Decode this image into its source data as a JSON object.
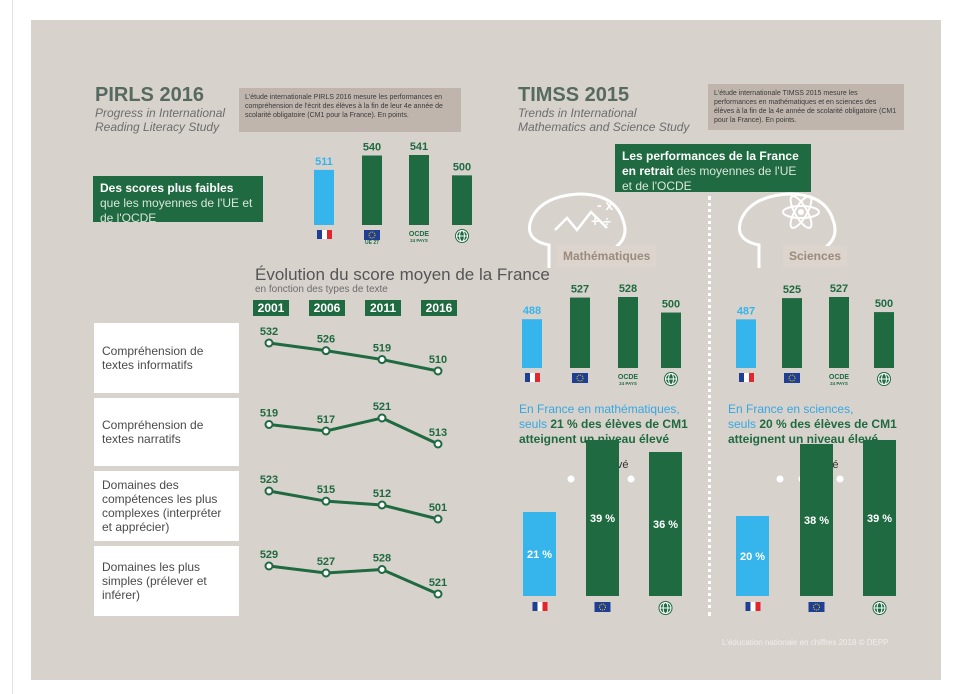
{
  "pirls": {
    "title": "PIRLS 2016",
    "subtitle1": "Progress in International",
    "subtitle2": "Reading Literacy Study",
    "note": "L'étude internationale PIRLS 2016 mesure les performances en compréhension de l'écrit des élèves à la fin de leur 4e année de scolarité obligatoire (CM1 pour la France). En points.",
    "callout_bold": "Des scores plus faibles",
    "callout_rest": "que les moyennes de l'UE et de l'OCDE",
    "evo_title": "Évolution du score moyen de la France",
    "evo_subtitle": "en fonction des types de texte"
  },
  "timss": {
    "title": "TIMSS 2015",
    "subtitle1": "Trends in International",
    "subtitle2": "Mathematics and Science Study",
    "note": "L'étude internationale TIMSS 2015 mesure les performances en mathématiques et en sciences des élèves à la fin de la 4e année de scolarité obligatoire (CM1 pour la France). En points.",
    "callout_bold": "Les performances de la France en retrait",
    "callout_rest": "des moyennes de l'UE et de l'OCDE",
    "math_label": "Mathématiques",
    "sci_label": "Sciences",
    "math_text_a": "En France en mathématiques,",
    "math_text_b": "seuls",
    "math_text_c": "21 % des élèves de CM1",
    "math_text_d": "atteignent un niveau élevé",
    "sci_text_a": "En France en sciences,",
    "sci_text_b": "seuls",
    "sci_text_c": "20 % des élèves de CM1",
    "sci_text_d": "atteignent un niveau élevé",
    "eleve": "Élevé"
  },
  "labels": {
    "ue27": "UE 27",
    "ocde_line1": "OCDE",
    "ocde_line2": "24 PAYS"
  },
  "footer": "L'éducation nationale en chiffres 2018 © DEPP",
  "colors": {
    "france": "#35b5ec",
    "green": "#1f6a40",
    "background": "#d8d2cd",
    "accent_text": "#35a7e0"
  },
  "chart_data": [
    {
      "type": "bar",
      "id": "pirls-scores",
      "categories": [
        "France",
        "UE 27",
        "OCDE",
        "Monde"
      ],
      "icons": [
        "flag-fr",
        "flag-eu",
        "ocde",
        "globe"
      ],
      "values": [
        511,
        540,
        541,
        500
      ]
    },
    {
      "type": "line",
      "id": "pirls-evolution",
      "x": [
        "2001",
        "2006",
        "2011",
        "2016"
      ],
      "series": [
        {
          "name": "Compréhension de textes informatifs",
          "values": [
            532,
            526,
            519,
            510
          ]
        },
        {
          "name": "Compréhension de textes narratifs",
          "values": [
            519,
            517,
            521,
            513
          ]
        },
        {
          "name": "Domaines des compétences les plus complexes (interpréter et apprécier)",
          "values": [
            523,
            515,
            512,
            501
          ]
        },
        {
          "name": "Domaines les plus simples (prélever et inférer)",
          "values": [
            529,
            527,
            528,
            521
          ]
        }
      ]
    },
    {
      "type": "bar",
      "id": "timss-math-scores",
      "categories": [
        "France",
        "UE",
        "OCDE",
        "Monde"
      ],
      "values": [
        488,
        527,
        528,
        500
      ]
    },
    {
      "type": "bar",
      "id": "timss-sci-scores",
      "categories": [
        "France",
        "UE",
        "OCDE",
        "Monde"
      ],
      "values": [
        487,
        525,
        527,
        500
      ]
    },
    {
      "type": "bar",
      "id": "timss-math-eleve",
      "categories": [
        "France",
        "UE",
        "Monde"
      ],
      "values": [
        21,
        39,
        36
      ],
      "labels": [
        "21 %",
        "39 %",
        "36 %"
      ]
    },
    {
      "type": "bar",
      "id": "timss-sci-eleve",
      "categories": [
        "France",
        "UE",
        "Monde"
      ],
      "values": [
        20,
        38,
        39
      ],
      "labels": [
        "20 %",
        "38 %",
        "39 %"
      ]
    }
  ]
}
